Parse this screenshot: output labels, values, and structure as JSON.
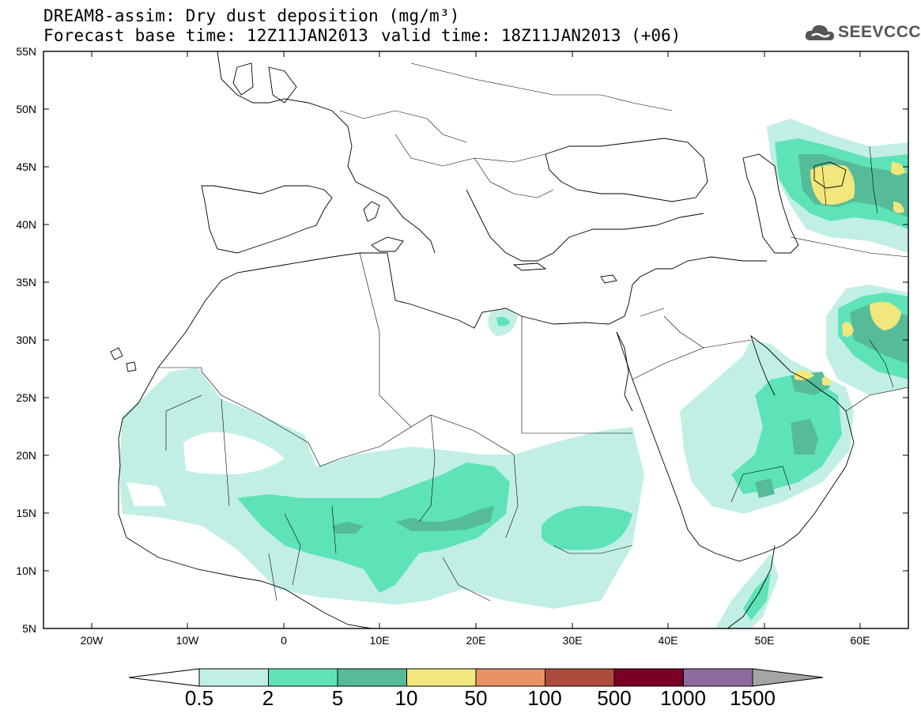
{
  "header": {
    "title_line1": "DREAM8-assim: Dry dust deposition (mg/m³)",
    "title_line2": "Forecast base time: 12Z11JAN2013",
    "valid_time": "valid time: 18Z11JAN2013 (+06)",
    "logo_text": "SEEVCCC",
    "logo_icon": "cloud-icon"
  },
  "axes": {
    "lat_labels": [
      "55N",
      "50N",
      "45N",
      "40N",
      "35N",
      "30N",
      "25N",
      "20N",
      "15N",
      "10N",
      "5N"
    ],
    "lon_labels": [
      "20W",
      "10W",
      "0",
      "10E",
      "20E",
      "30E",
      "40E",
      "50E",
      "60E"
    ]
  },
  "legend": {
    "thresholds": [
      "0.5",
      "2",
      "5",
      "10",
      "50",
      "100",
      "500",
      "1000",
      "1500"
    ],
    "colors": [
      "#c1efe6",
      "#5ee3b8",
      "#55bb98",
      "#f2e77c",
      "#e89266",
      "#ae4b3c",
      "#7b0026",
      "#8b6c9d",
      "#a5a5a5"
    ],
    "under_color": "#ffffff"
  },
  "map": {
    "region": "North Africa, Europe and Middle East",
    "lon_range": [
      -25,
      65
    ],
    "lat_range": [
      5,
      55
    ]
  }
}
